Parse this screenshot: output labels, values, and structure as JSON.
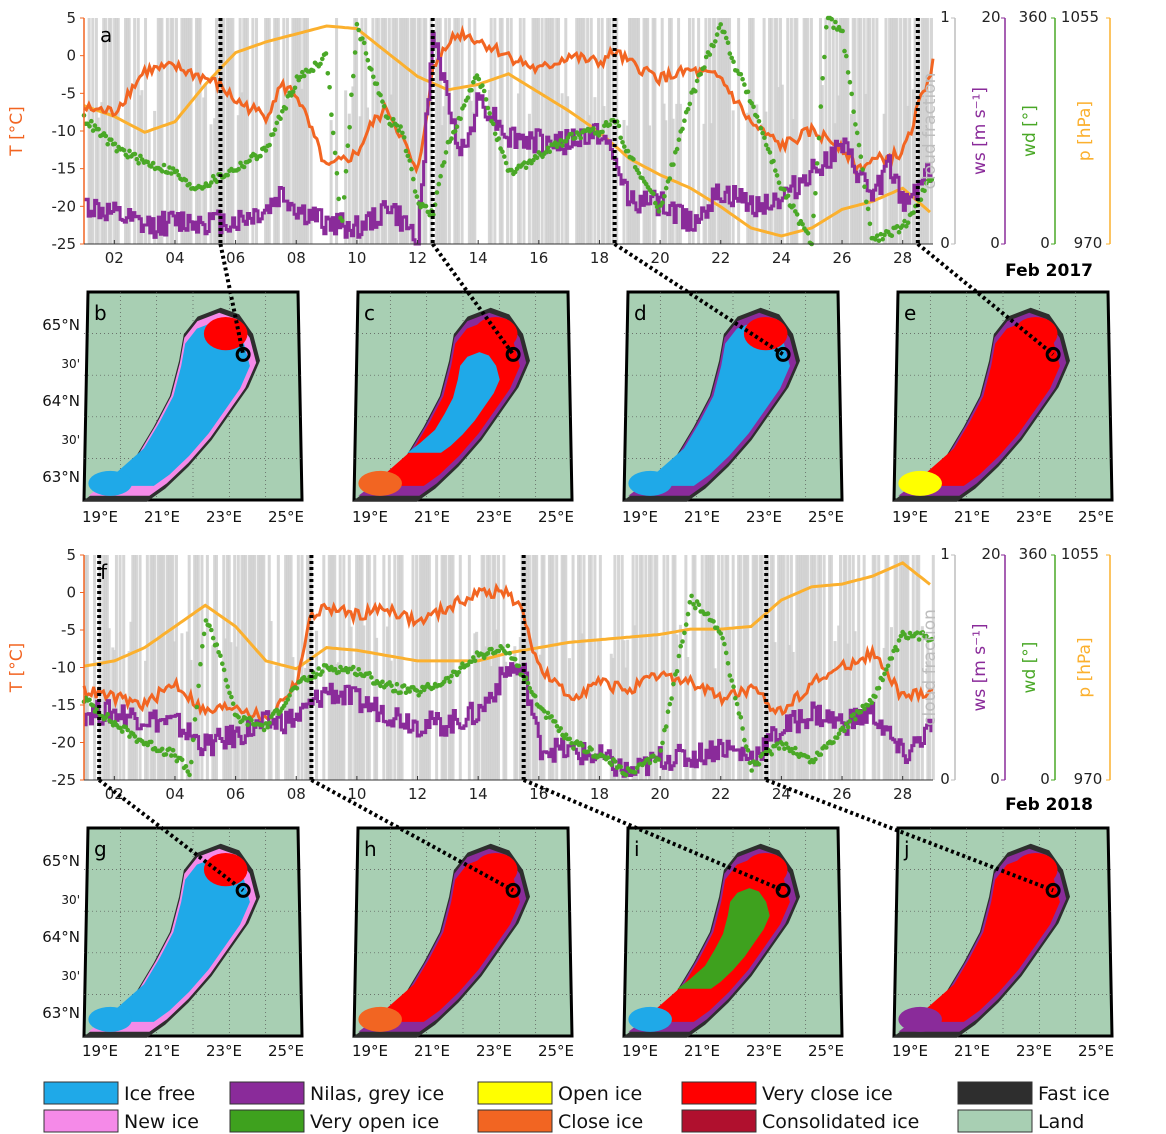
{
  "chart_data": [
    {
      "type": "line",
      "panel_label": "a",
      "month_label": "Feb 2017",
      "x_ticks": [
        "02",
        "04",
        "06",
        "08",
        "10",
        "12",
        "14",
        "16",
        "18",
        "20",
        "22",
        "24",
        "26",
        "28"
      ],
      "x_range": [
        1,
        29
      ],
      "map_days": [
        5.5,
        12.5,
        18.5,
        28.5
      ],
      "axes": {
        "T": {
          "label": "T [°C]",
          "range": [
            -25,
            5
          ],
          "ticks": [
            "5",
            "0",
            "-5",
            "-10",
            "-15",
            "-20",
            "-25"
          ],
          "color": "#f26522"
        },
        "cloud": {
          "label": "cloud fraction",
          "range": [
            0,
            1
          ],
          "ticks": [
            "1",
            "0"
          ],
          "color": "#c8c8c8"
        },
        "ws": {
          "label": "ws [m s⁻¹]",
          "range": [
            0,
            20
          ],
          "ticks": [
            "20",
            "0"
          ],
          "color": "#8a2b9a"
        },
        "wd": {
          "label": "wd [°]",
          "range": [
            0,
            360
          ],
          "ticks": [
            "360",
            "0"
          ],
          "color": "#4aa827"
        },
        "p": {
          "label": "p [hPa]",
          "range": [
            970,
            1055
          ],
          "ticks": [
            "1055",
            "970"
          ],
          "color": "#fbb02e"
        }
      },
      "series": [
        {
          "key": "T",
          "unit": "°C",
          "x": [
            1,
            2,
            3,
            4,
            5,
            5.5,
            6,
            7,
            7.5,
            8,
            9,
            9.5,
            10,
            10.5,
            11,
            11.5,
            12,
            12.5,
            13,
            13.5,
            14,
            15,
            16,
            17,
            18,
            18.5,
            19,
            20,
            21,
            22,
            23,
            24,
            25,
            26,
            26.5,
            27,
            28,
            28.5,
            29
          ],
          "y": [
            -7,
            -7.5,
            -2,
            -1.5,
            -3,
            -4,
            -6,
            -8,
            -4,
            -5,
            -15,
            -14,
            -13,
            -9,
            -7,
            -11,
            -16,
            -2,
            2,
            3,
            2,
            0,
            -2,
            0,
            -1,
            0.5,
            -1,
            -3,
            -2,
            -3,
            -9,
            -12,
            -10,
            -12,
            -15,
            -14,
            -13,
            -7,
            -1
          ]
        },
        {
          "key": "ws",
          "unit": "m s⁻¹",
          "x": [
            1,
            2,
            3,
            4,
            5,
            6,
            7,
            7.5,
            8,
            9,
            10,
            10.5,
            11,
            11.5,
            12,
            12.5,
            13,
            13.5,
            14,
            15,
            16,
            17,
            18,
            18.5,
            19,
            20,
            21,
            22,
            23,
            24,
            25,
            26,
            27,
            27.5,
            28,
            29
          ],
          "y": [
            3.5,
            2.5,
            1.5,
            2,
            2,
            2,
            3,
            4.5,
            3,
            1.8,
            1.5,
            2,
            3.5,
            1.8,
            0.5,
            19,
            12,
            8,
            13,
            9.5,
            9,
            9,
            10,
            7,
            4,
            3.5,
            2,
            4.5,
            3.5,
            4,
            6.5,
            8.5,
            4,
            7,
            3.5,
            7
          ]
        },
        {
          "key": "wd",
          "unit": "°",
          "x": [
            1,
            2,
            3,
            4,
            4.5,
            5,
            6,
            7,
            8,
            9,
            9.5,
            10,
            11,
            11.5,
            12,
            12.5,
            13,
            14,
            15,
            16,
            17,
            18,
            18.5,
            19,
            20,
            21,
            22,
            22.5,
            23,
            24,
            25,
            25.5,
            26,
            27,
            28,
            29
          ],
          "y": [
            200,
            155,
            130,
            115,
            90,
            95,
            120,
            150,
            260,
            300,
            20,
            350,
            200,
            180,
            70,
            45,
            160,
            270,
            110,
            140,
            170,
            180,
            200,
            140,
            55,
            230,
            350,
            280,
            230,
            90,
            0,
            360,
            340,
            5,
            25,
            110
          ]
        },
        {
          "key": "p",
          "unit": "hPa",
          "x": [
            1,
            2,
            3,
            4,
            5,
            6,
            7,
            8,
            9,
            10,
            11,
            12,
            13,
            14,
            15,
            16,
            17,
            18,
            19,
            20,
            21,
            22,
            23,
            24,
            25,
            26,
            27,
            28,
            29
          ],
          "y": [
            1022,
            1018,
            1012,
            1016,
            1030,
            1042,
            1046,
            1049,
            1052,
            1051,
            1042,
            1033,
            1028,
            1030,
            1034,
            1027,
            1020,
            1012,
            1002,
            996,
            991,
            984,
            976,
            973,
            976,
            983,
            986,
            991,
            981
          ]
        }
      ],
      "cloud_pattern_seed": 3
    },
    {
      "type": "line",
      "panel_label": "f",
      "month_label": "Feb 2018",
      "x_ticks": [
        "02",
        "04",
        "06",
        "08",
        "10",
        "12",
        "14",
        "16",
        "18",
        "20",
        "22",
        "24",
        "26",
        "28"
      ],
      "x_range": [
        1,
        29
      ],
      "map_days": [
        1.5,
        8.5,
        15.5,
        23.5
      ],
      "axes": {
        "T": {
          "label": "T [°C]",
          "range": [
            -25,
            5
          ],
          "ticks": [
            "5",
            "0",
            "-5",
            "-10",
            "-15",
            "-20",
            "-25"
          ],
          "color": "#f26522"
        },
        "cloud": {
          "label": "cloud fraction",
          "range": [
            0,
            1
          ],
          "ticks": [
            "1",
            "0"
          ],
          "color": "#c8c8c8"
        },
        "ws": {
          "label": "ws [m s⁻¹]",
          "range": [
            0,
            20
          ],
          "ticks": [
            "20",
            "0"
          ],
          "color": "#8a2b9a"
        },
        "wd": {
          "label": "wd [°]",
          "range": [
            0,
            360
          ],
          "ticks": [
            "360",
            "0"
          ],
          "color": "#4aa827"
        },
        "p": {
          "label": "p [hPa]",
          "range": [
            970,
            1055
          ],
          "ticks": [
            "1055",
            "970"
          ],
          "color": "#fbb02e"
        }
      },
      "series": [
        {
          "key": "T",
          "unit": "°C",
          "x": [
            1,
            2,
            3,
            4,
            5,
            6,
            7,
            8,
            8.5,
            9,
            10,
            11,
            12,
            13,
            14,
            15,
            15.5,
            16,
            17,
            18,
            19,
            20,
            21,
            22,
            23,
            24,
            25,
            26,
            27,
            28,
            29
          ],
          "y": [
            -13,
            -14,
            -15,
            -12,
            -16,
            -15,
            -17,
            -12,
            -3,
            -2,
            -3,
            -2,
            -4,
            -2,
            0,
            0,
            -3,
            -10,
            -14,
            -12,
            -13,
            -11,
            -12,
            -14,
            -13,
            -16,
            -12,
            -10,
            -8,
            -14,
            -13
          ]
        },
        {
          "key": "ws",
          "unit": "m s⁻¹",
          "x": [
            1,
            2,
            3,
            4,
            5,
            6,
            7,
            8,
            9,
            10,
            11,
            12,
            13,
            14,
            15,
            15.5,
            16,
            17,
            18,
            19,
            20,
            21,
            22,
            23,
            24,
            25,
            26,
            27,
            28,
            29
          ],
          "y": [
            6,
            6,
            5.5,
            5,
            3,
            4,
            5,
            5.5,
            8,
            7,
            6,
            5,
            5,
            6,
            10,
            9.5,
            3,
            2.5,
            2,
            0.5,
            2,
            2,
            3,
            2,
            4.5,
            6,
            5,
            6,
            2,
            5
          ]
        },
        {
          "key": "wd",
          "unit": "°",
          "x": [
            1,
            2,
            3,
            4,
            4.5,
            5,
            5.5,
            6,
            7,
            8,
            9,
            10,
            11,
            12,
            13,
            14,
            15,
            16,
            17,
            18,
            19,
            20,
            21,
            22,
            23,
            24,
            25,
            26,
            27,
            28,
            29
          ],
          "y": [
            130,
            90,
            60,
            40,
            10,
            260,
            200,
            100,
            85,
            150,
            180,
            175,
            150,
            140,
            160,
            200,
            210,
            120,
            60,
            40,
            10,
            40,
            290,
            240,
            20,
            60,
            30,
            80,
            130,
            230,
            230
          ]
        },
        {
          "key": "p",
          "unit": "hPa",
          "x": [
            1,
            2,
            3,
            4,
            5,
            6,
            7,
            8,
            9,
            10,
            11,
            12,
            13,
            14,
            15,
            16,
            17,
            18,
            19,
            20,
            21,
            22,
            23,
            24,
            25,
            26,
            27,
            28,
            29
          ],
          "y": [
            1013,
            1015,
            1020,
            1028,
            1036,
            1028,
            1015,
            1012,
            1020,
            1019,
            1017,
            1015,
            1015,
            1015,
            1018,
            1020,
            1022,
            1023,
            1024,
            1025,
            1027,
            1027,
            1028,
            1038,
            1043,
            1044,
            1047,
            1052,
            1043
          ]
        }
      ],
      "cloud_pattern_seed": 11
    }
  ],
  "maps": [
    {
      "label": "b"
    },
    {
      "label": "c"
    },
    {
      "label": "d"
    },
    {
      "label": "e"
    },
    {
      "label": "g"
    },
    {
      "label": "h"
    },
    {
      "label": "i"
    },
    {
      "label": "j"
    }
  ],
  "map_axes": {
    "lat_labels": [
      "65°N",
      "30'",
      "64°N",
      "30'",
      "63°N"
    ],
    "lon_labels": [
      "19°E",
      "21°E",
      "23°E",
      "25°E"
    ]
  },
  "legend": [
    {
      "label": "Ice free",
      "color": "#1fa9e8"
    },
    {
      "label": "Nilas, grey ice",
      "color": "#8a2b9a"
    },
    {
      "label": "Open ice",
      "color": "#ffff00"
    },
    {
      "label": "Very close ice",
      "color": "#ff0000"
    },
    {
      "label": "Fast ice",
      "color": "#2e2e2e"
    },
    {
      "label": "New ice",
      "color": "#f58ae8"
    },
    {
      "label": "Very open ice",
      "color": "#3ea11e"
    },
    {
      "label": "Close ice",
      "color": "#f26522"
    },
    {
      "label": "Consolidated ice",
      "color": "#b0102e"
    },
    {
      "label": "Land",
      "color": "#a8cfb3"
    }
  ],
  "colors": {
    "sea_bg": "#a8cfb3",
    "coast": "#2e2e2e",
    "T": "#f26522",
    "ws": "#8a2b9a",
    "wd": "#4aa827",
    "p": "#fbb02e",
    "cloud": "#cfcfcf"
  }
}
